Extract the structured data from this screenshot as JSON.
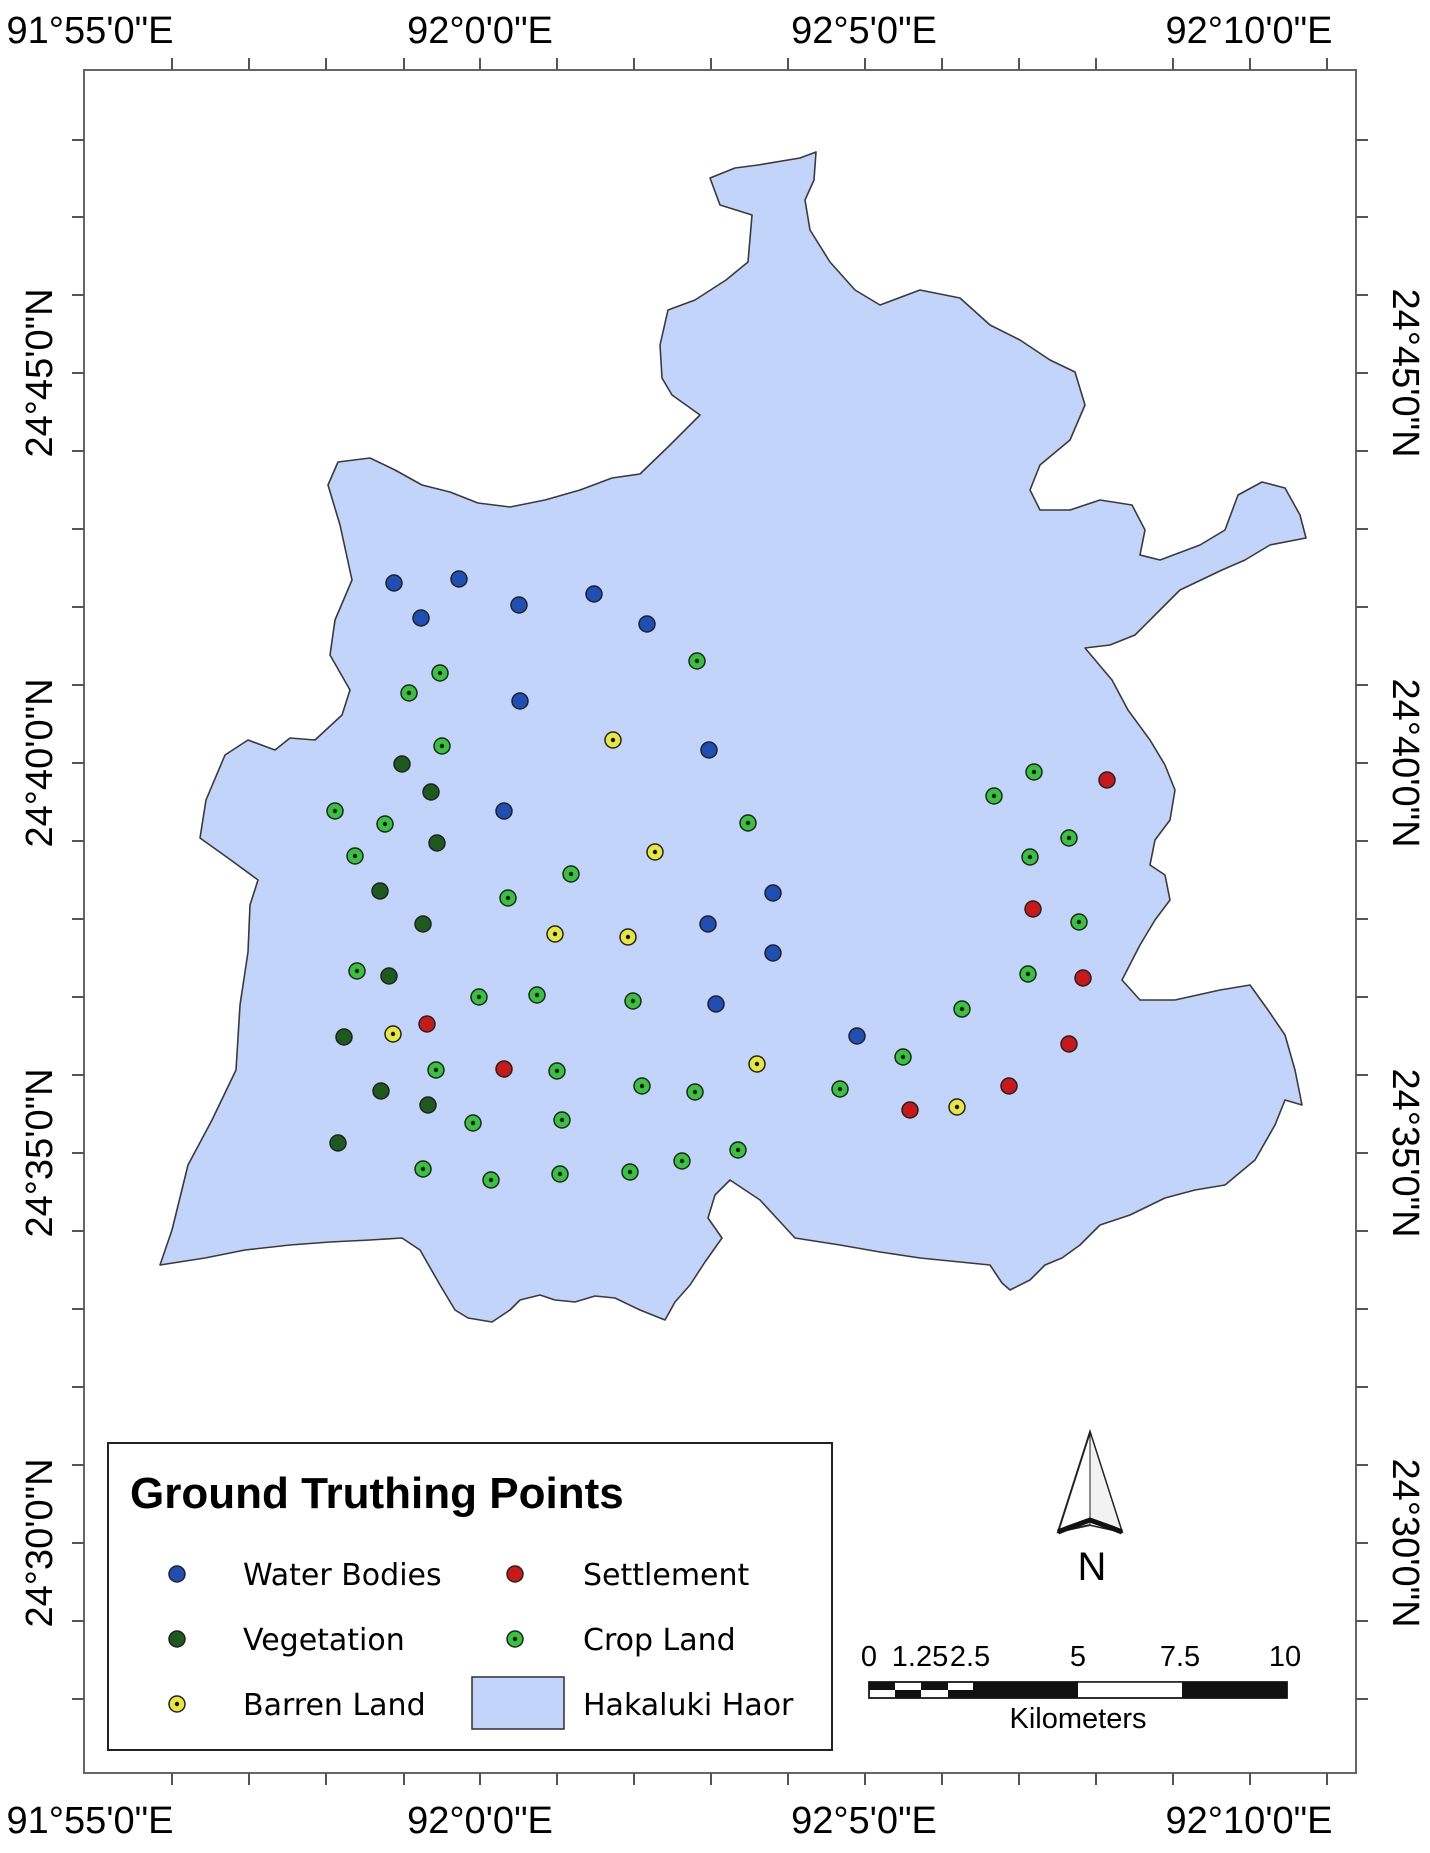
{
  "colors": {
    "haor_fill": "#c3d4fa",
    "haor_stroke": "#3a3a3a",
    "water": "#1f4fb5",
    "vegetation": "#1d5a1d",
    "barren": "#e8e83a",
    "settlement": "#c81818",
    "crop": "#35c43a"
  },
  "axes": {
    "top": [
      "91°55'0\"E",
      "92°0'0\"E",
      "92°5'0\"E",
      "92°10'0\"E"
    ],
    "bottom": [
      "91°55'0\"E",
      "92°0'0\"E",
      "92°5'0\"E",
      "92°10'0\"E"
    ],
    "left": [
      "24°45'0\"N",
      "24°40'0\"N",
      "24°35'0\"N",
      "24°30'0\"N"
    ],
    "right": [
      "24°45'0\"N",
      "24°40'0\"N",
      "24°35'0\"N",
      "24°30'0\"N"
    ]
  },
  "legend": {
    "title": "Ground Truthing Points",
    "items": [
      {
        "label": "Water Bodies",
        "symbol": "water-point-icon",
        "color": "#1f4fb5"
      },
      {
        "label": "Settlement",
        "symbol": "settlement-point-icon",
        "color": "#c81818"
      },
      {
        "label": "Vegetation",
        "symbol": "vegetation-point-icon",
        "color": "#1d5a1d"
      },
      {
        "label": "Crop Land",
        "symbol": "crop-point-icon",
        "color": "#35c43a"
      },
      {
        "label": "Barren Land",
        "symbol": "barren-point-icon",
        "color": "#e8e83a"
      },
      {
        "label": "Hakaluki Haor",
        "symbol": "haor-area-swatch",
        "color": "#c3d4fa"
      }
    ]
  },
  "north_arrow": {
    "label": "N",
    "icon": "north-arrow-icon"
  },
  "scale_bar": {
    "ticks": [
      "0",
      "1.25",
      "2.5",
      "5",
      "7.5",
      "10"
    ],
    "unit": "Kilometers"
  }
}
